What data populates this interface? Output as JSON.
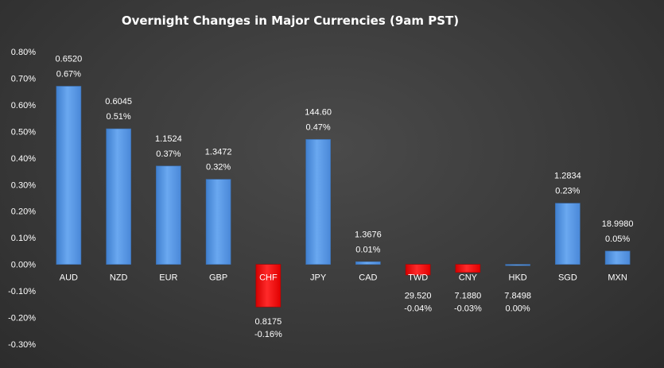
{
  "chart_data": {
    "type": "bar",
    "title": "Overnight Changes in Major Currencies (9am PST)",
    "xlabel": "",
    "ylabel": "",
    "ylim": [
      -0.3,
      0.8
    ],
    "y_ticks": [
      "-0.30%",
      "-0.20%",
      "-0.10%",
      "0.00%",
      "0.10%",
      "0.20%",
      "0.30%",
      "0.40%",
      "0.50%",
      "0.60%",
      "0.70%",
      "0.80%"
    ],
    "categories": [
      "AUD",
      "NZD",
      "EUR",
      "GBP",
      "CHF",
      "JPY",
      "CAD",
      "TWD",
      "CNY",
      "HKD",
      "SGD",
      "MXN"
    ],
    "values": [
      0.67,
      0.51,
      0.37,
      0.32,
      -0.16,
      0.47,
      0.01,
      -0.04,
      -0.03,
      0.0,
      0.23,
      0.05
    ],
    "rates": [
      "0.6520",
      "0.6045",
      "1.1524",
      "1.3472",
      "0.8175",
      "144.60",
      "1.3676",
      "29.520",
      "7.1880",
      "7.8498",
      "1.2834",
      "18.9980"
    ],
    "value_labels": [
      "0.67%",
      "0.51%",
      "0.37%",
      "0.32%",
      "-0.16%",
      "0.47%",
      "0.01%",
      "-0.04%",
      "-0.03%",
      "0.00%",
      "0.23%",
      "0.05%"
    ],
    "grid": false,
    "legend": "none",
    "colors": {
      "positive": "#5b9be5",
      "negative": "#ff0000"
    }
  }
}
